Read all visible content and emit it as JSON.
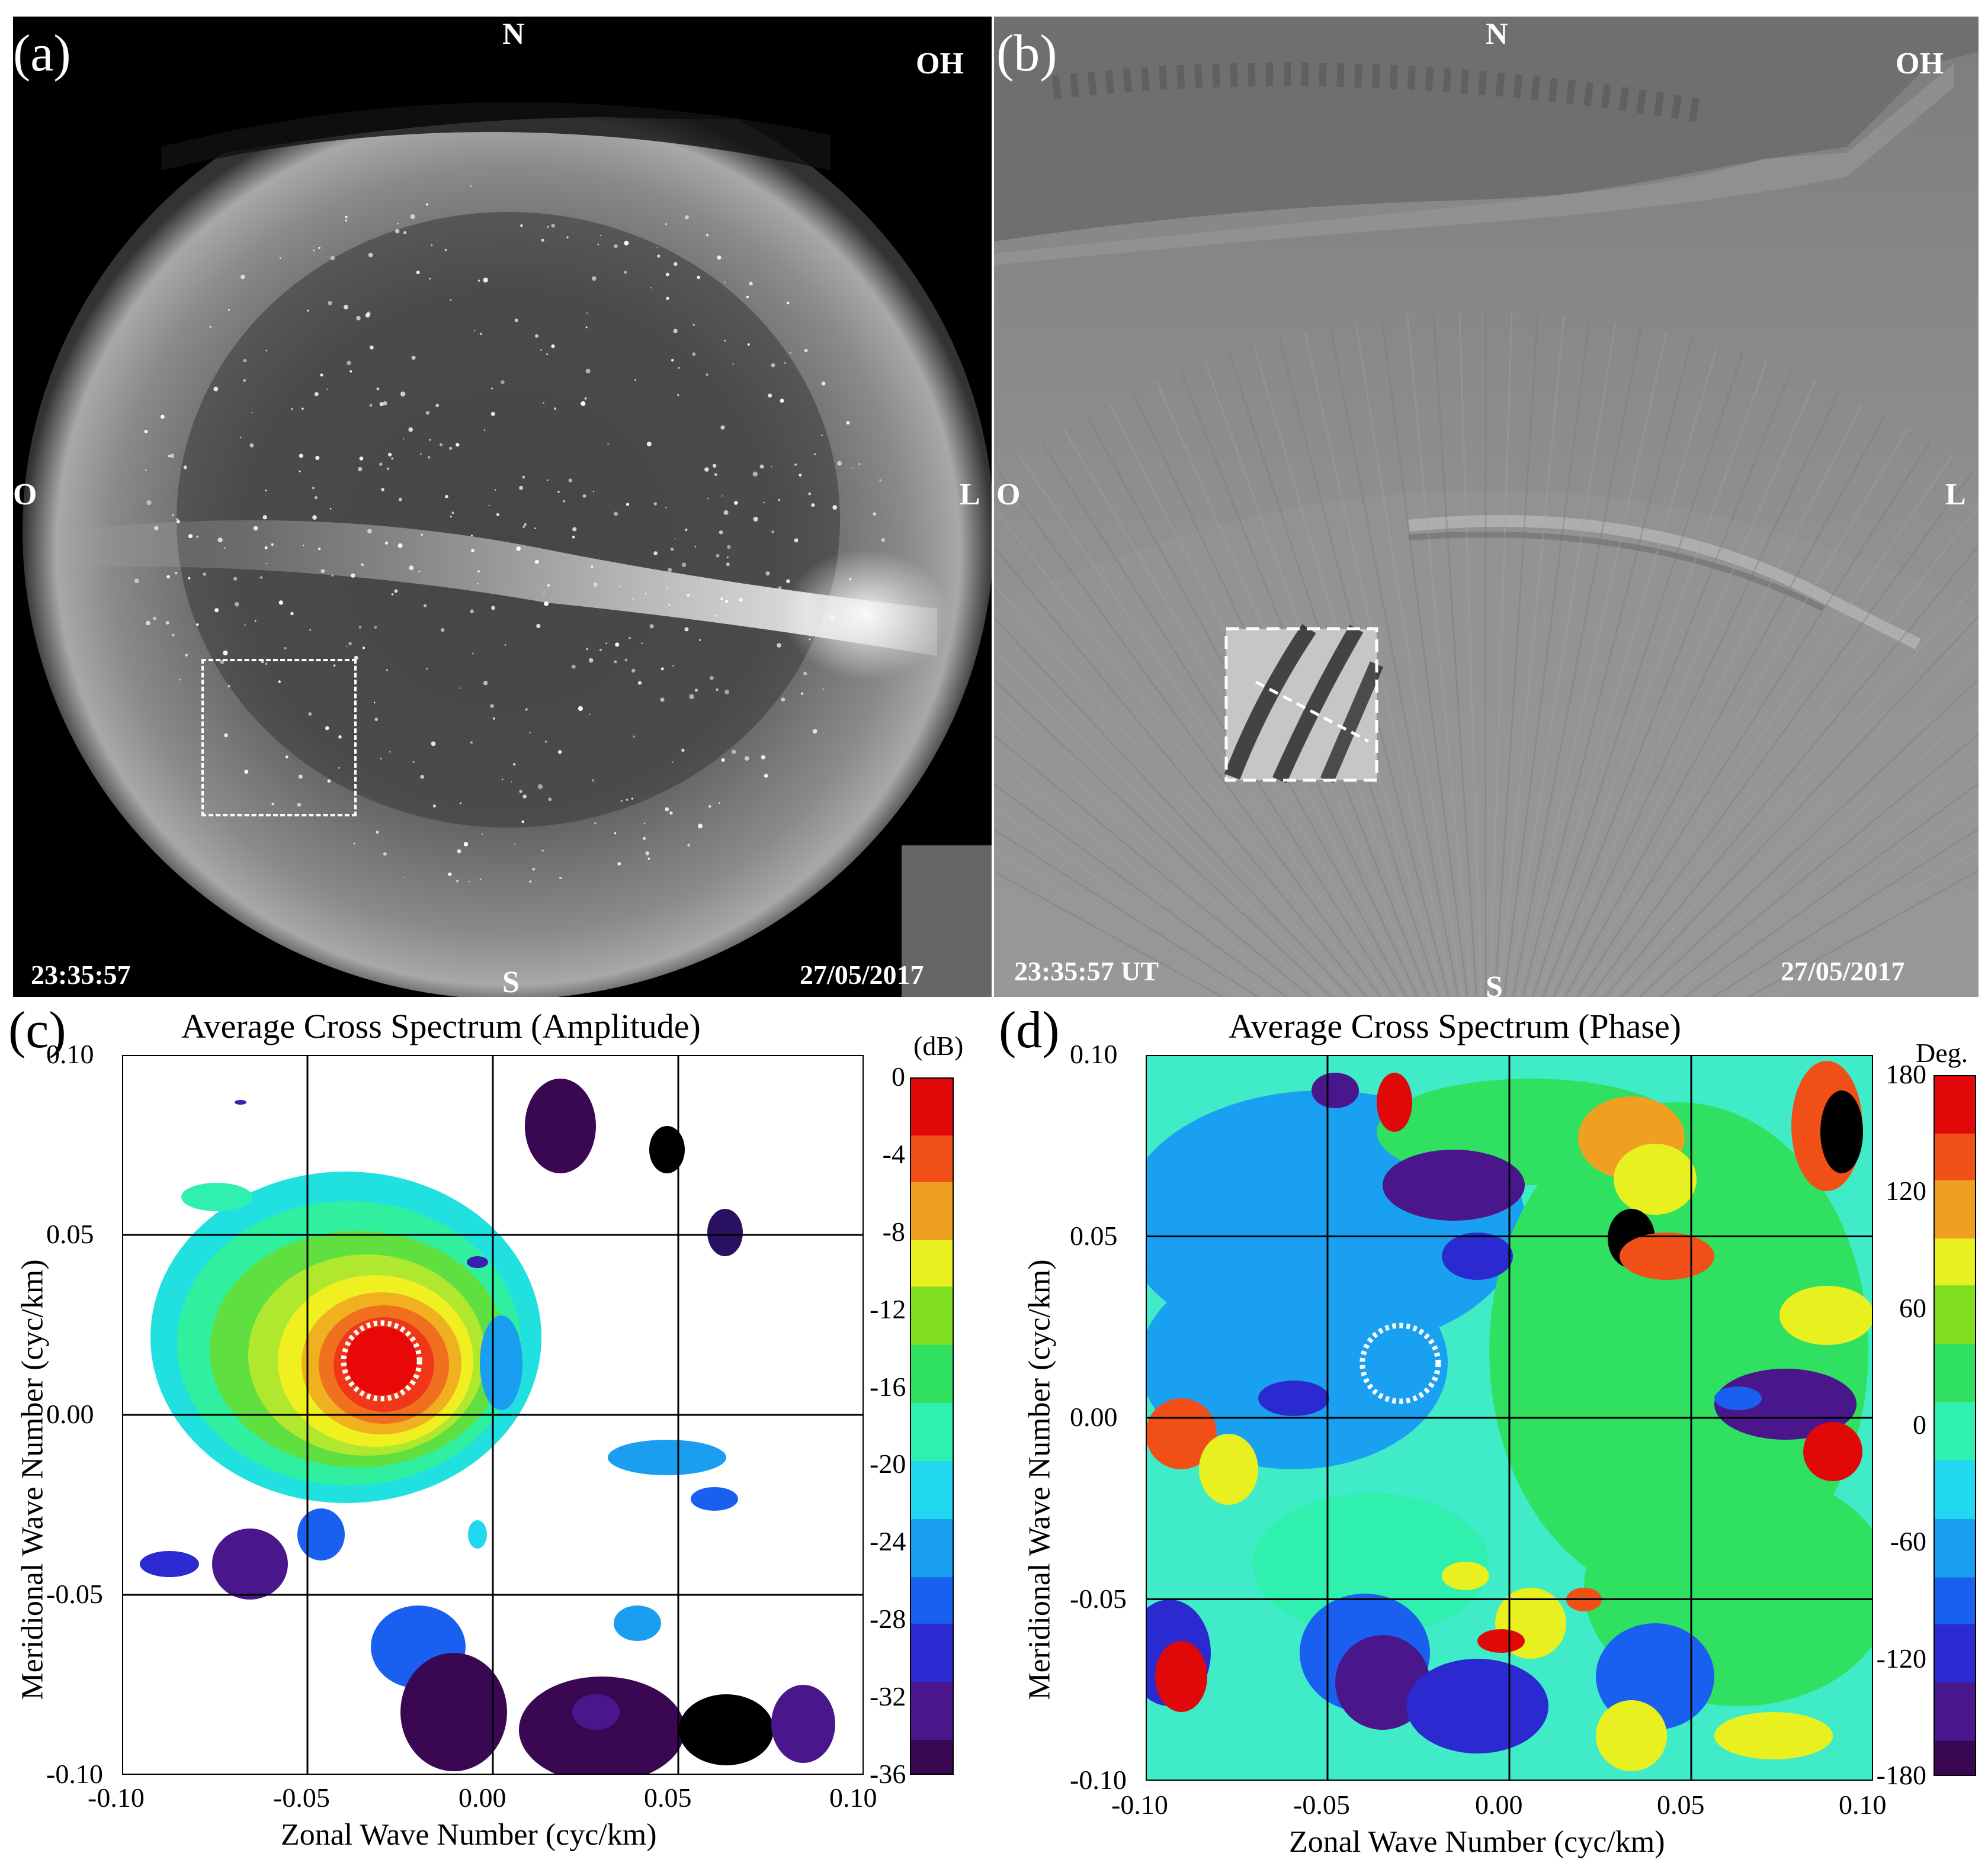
{
  "panels": {
    "a": {
      "label": "(a)",
      "dirs": {
        "n": "N",
        "s": "S",
        "w": "O",
        "e": "L",
        "filter": "OH"
      },
      "time": "23:35:57",
      "date": "27/05/2017"
    },
    "b": {
      "label": "(b)",
      "dirs": {
        "n": "N",
        "s": "S",
        "w": "O",
        "e": "L",
        "filter": "OH"
      },
      "time": "23:35:57 UT",
      "date": "27/05/2017"
    },
    "c": {
      "label": "(c)",
      "title": "Average Cross Spectrum (Amplitude)",
      "xlabel": "Zonal Wave Number (cyc/km)",
      "ylabel": "Meridional Wave Number (cyc/km)",
      "xticks": [
        "-0.10",
        "-0.05",
        "0.00",
        "0.05",
        "0.10"
      ],
      "yticks": [
        "0.10",
        "0.05",
        "0.00",
        "-0.05",
        "-0.10"
      ],
      "cbar_unit": "(dB)",
      "cbar_ticks": [
        "0",
        "-4",
        "-8",
        "-12",
        "-16",
        "-20",
        "-24",
        "-28",
        "-32",
        "-36"
      ]
    },
    "d": {
      "label": "(d)",
      "title": "Average Cross Spectrum (Phase)",
      "xlabel": "Zonal Wave Number (cyc/km)",
      "ylabel": "Meridional Wave Number (cyc/km)",
      "xticks": [
        "-0.10",
        "-0.05",
        "0.00",
        "0.05",
        "0.10"
      ],
      "yticks": [
        "0.10",
        "0.05",
        "0.00",
        "-0.05",
        "-0.10"
      ],
      "cbar_unit": "Deg.",
      "cbar_ticks": [
        "180",
        "120",
        "60",
        "0",
        "-60",
        "-120",
        "-180"
      ]
    }
  },
  "chart_data": [
    {
      "type": "heatmap",
      "title": "Average Cross Spectrum (Amplitude)",
      "xlabel": "Zonal Wave Number (cyc/km)",
      "ylabel": "Meridional Wave Number (cyc/km)",
      "xlim": [
        -0.1,
        0.1
      ],
      "ylim": [
        -0.1,
        0.1
      ],
      "colorbar": {
        "label": "(dB)",
        "range": [
          -36,
          0
        ]
      },
      "peak": {
        "x": -0.03,
        "y": 0.015,
        "value": 0
      }
    },
    {
      "type": "heatmap",
      "title": "Average Cross Spectrum (Phase)",
      "xlabel": "Zonal Wave Number (cyc/km)",
      "ylabel": "Meridional Wave Number (cyc/km)",
      "xlim": [
        -0.1,
        0.1
      ],
      "ylim": [
        -0.1,
        0.1
      ],
      "colorbar": {
        "label": "Deg.",
        "range": [
          -180,
          180
        ]
      },
      "marked_region": {
        "x": -0.03,
        "y": 0.015
      }
    }
  ],
  "colors": {
    "jet": [
      "#ffffff",
      "#000000",
      "#3b0a56",
      "#4b1a8a",
      "#2a2ad4",
      "#1e5cf0",
      "#1e9bf0",
      "#2ee0e0",
      "#3ef0a0",
      "#20d020",
      "#a0e020",
      "#f0f020",
      "#f0a020",
      "#f05020",
      "#e81010"
    ]
  }
}
